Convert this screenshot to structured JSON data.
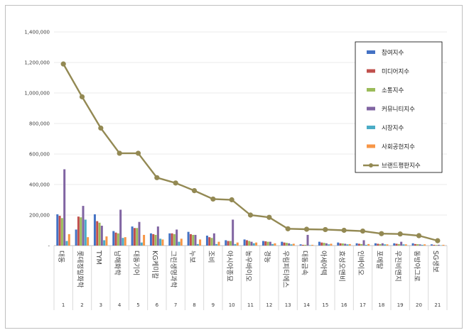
{
  "chart_data": {
    "type": "bar+line",
    "ylim": [
      0,
      1400000
    ],
    "yticks": [
      0,
      200000,
      400000,
      600000,
      800000,
      1000000,
      1200000,
      1400000
    ],
    "ytick_labels": [
      "-",
      "200,000",
      "400,000",
      "600,000",
      "800,000",
      "1,000,000",
      "1,200,000",
      "1,400,000"
    ],
    "categories": [
      "대동",
      "롯데정밀화학",
      "TYM",
      "남해화학",
      "대동기어",
      "KG케미칼",
      "그린생명과학",
      "누보",
      "조비",
      "아시아종묘",
      "농우바이오",
      "경농",
      "우림피티에스",
      "대동금속",
      "아세아텍",
      "효성오앤비",
      "인바이오",
      "포메탈",
      "우진비앤지",
      "동방아그로",
      "SG생보"
    ],
    "ranks": [
      "1",
      "2",
      "3",
      "4",
      "5",
      "6",
      "7",
      "8",
      "9",
      "10",
      "11",
      "12",
      "13",
      "14",
      "15",
      "16",
      "17",
      "18",
      "19",
      "20",
      "21"
    ],
    "legend_position": "top-right",
    "series": [
      {
        "name": "참여지수",
        "type": "bar",
        "color": "#4472c4",
        "values": [
          205000,
          105000,
          205000,
          95000,
          125000,
          80000,
          80000,
          90000,
          65000,
          35000,
          40000,
          30000,
          25000,
          8000,
          25000,
          20000,
          15000,
          15000,
          15000,
          15000,
          8000
        ]
      },
      {
        "name": "미디어지수",
        "type": "bar",
        "color": "#c0504d",
        "values": [
          195000,
          190000,
          160000,
          85000,
          115000,
          75000,
          80000,
          75000,
          55000,
          30000,
          35000,
          28000,
          20000,
          5000,
          20000,
          15000,
          12000,
          12000,
          12000,
          10000,
          5000
        ]
      },
      {
        "name": "소통지수",
        "type": "bar",
        "color": "#9bbb59",
        "values": [
          180000,
          185000,
          150000,
          80000,
          115000,
          70000,
          75000,
          70000,
          50000,
          30000,
          30000,
          25000,
          18000,
          5000,
          18000,
          14000,
          10000,
          10000,
          10000,
          9000,
          4000
        ]
      },
      {
        "name": "커뮤니티지수",
        "type": "bar",
        "color": "#8064a2",
        "values": [
          500000,
          260000,
          130000,
          235000,
          155000,
          125000,
          105000,
          70000,
          80000,
          170000,
          25000,
          25000,
          15000,
          70000,
          15000,
          12000,
          35000,
          15000,
          25000,
          8000,
          5000
        ]
      },
      {
        "name": "시장지수",
        "type": "bar",
        "color": "#4bacc6",
        "values": [
          30000,
          170000,
          35000,
          50000,
          20000,
          45000,
          25000,
          10000,
          10000,
          10000,
          15000,
          10000,
          8000,
          3000,
          8000,
          8000,
          5000,
          8000,
          8000,
          5000,
          2000
        ]
      },
      {
        "name": "사회공헌지수",
        "type": "bar",
        "color": "#f79646",
        "values": [
          75000,
          55000,
          60000,
          55000,
          70000,
          40000,
          45000,
          40000,
          25000,
          20000,
          20000,
          15000,
          12000,
          5000,
          12000,
          10000,
          10000,
          8000,
          8000,
          8000,
          5000
        ]
      },
      {
        "name": "브랜드평판지수",
        "type": "line",
        "color": "#938953",
        "values": [
          1190000,
          975000,
          770000,
          605000,
          605000,
          445000,
          410000,
          360000,
          305000,
          300000,
          200000,
          185000,
          110000,
          107000,
          105000,
          100000,
          95000,
          78000,
          76000,
          65000,
          32000
        ]
      }
    ]
  }
}
